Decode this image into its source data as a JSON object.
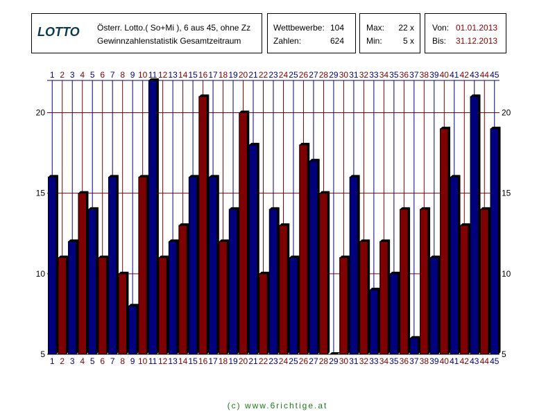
{
  "header": {
    "logo": "LOTTO",
    "line1": "Österr. Lotto.( So+Mi ), 6 aus 45, ohne Zz",
    "line2": "Gewinnzahlenstatistik Gesamtzeitraum"
  },
  "competitions": {
    "label1": "Wettbewerbe:",
    "value1": "104",
    "label2": "Zahlen:",
    "value2": "624"
  },
  "range": {
    "max_label": "Max:",
    "max_value": "22 x",
    "min_label": "Min:",
    "min_value": "5 x"
  },
  "dates": {
    "from_label": "Von:",
    "from_value": "01.01.2013",
    "to_label": "Bis:",
    "to_value": "31.12.2013"
  },
  "footer": "(c) www.6richtige.at",
  "colors": {
    "blue": "#00007f",
    "red": "#7f0000",
    "grid": "#7f0000",
    "label_blue": "#00007f",
    "label_red": "#7f0000"
  },
  "chart_data": {
    "type": "bar",
    "categories": [
      "1",
      "2",
      "3",
      "4",
      "5",
      "6",
      "7",
      "8",
      "9",
      "10",
      "11",
      "12",
      "13",
      "14",
      "15",
      "16",
      "17",
      "18",
      "19",
      "20",
      "21",
      "22",
      "23",
      "24",
      "25",
      "26",
      "27",
      "28",
      "29",
      "30",
      "31",
      "32",
      "33",
      "34",
      "35",
      "36",
      "37",
      "38",
      "39",
      "40",
      "41",
      "42",
      "43",
      "44",
      "45"
    ],
    "values": [
      16,
      11,
      12,
      15,
      14,
      11,
      16,
      10,
      8,
      16,
      22,
      11,
      12,
      13,
      16,
      21,
      16,
      12,
      14,
      20,
      18,
      10,
      14,
      13,
      11,
      18,
      17,
      15,
      5,
      11,
      16,
      12,
      9,
      12,
      10,
      14,
      6,
      14,
      11,
      19,
      16,
      13,
      21,
      14,
      19
    ],
    "ylim": [
      5,
      22
    ],
    "yticks": [
      5,
      10,
      15,
      20
    ],
    "grid": true
  }
}
